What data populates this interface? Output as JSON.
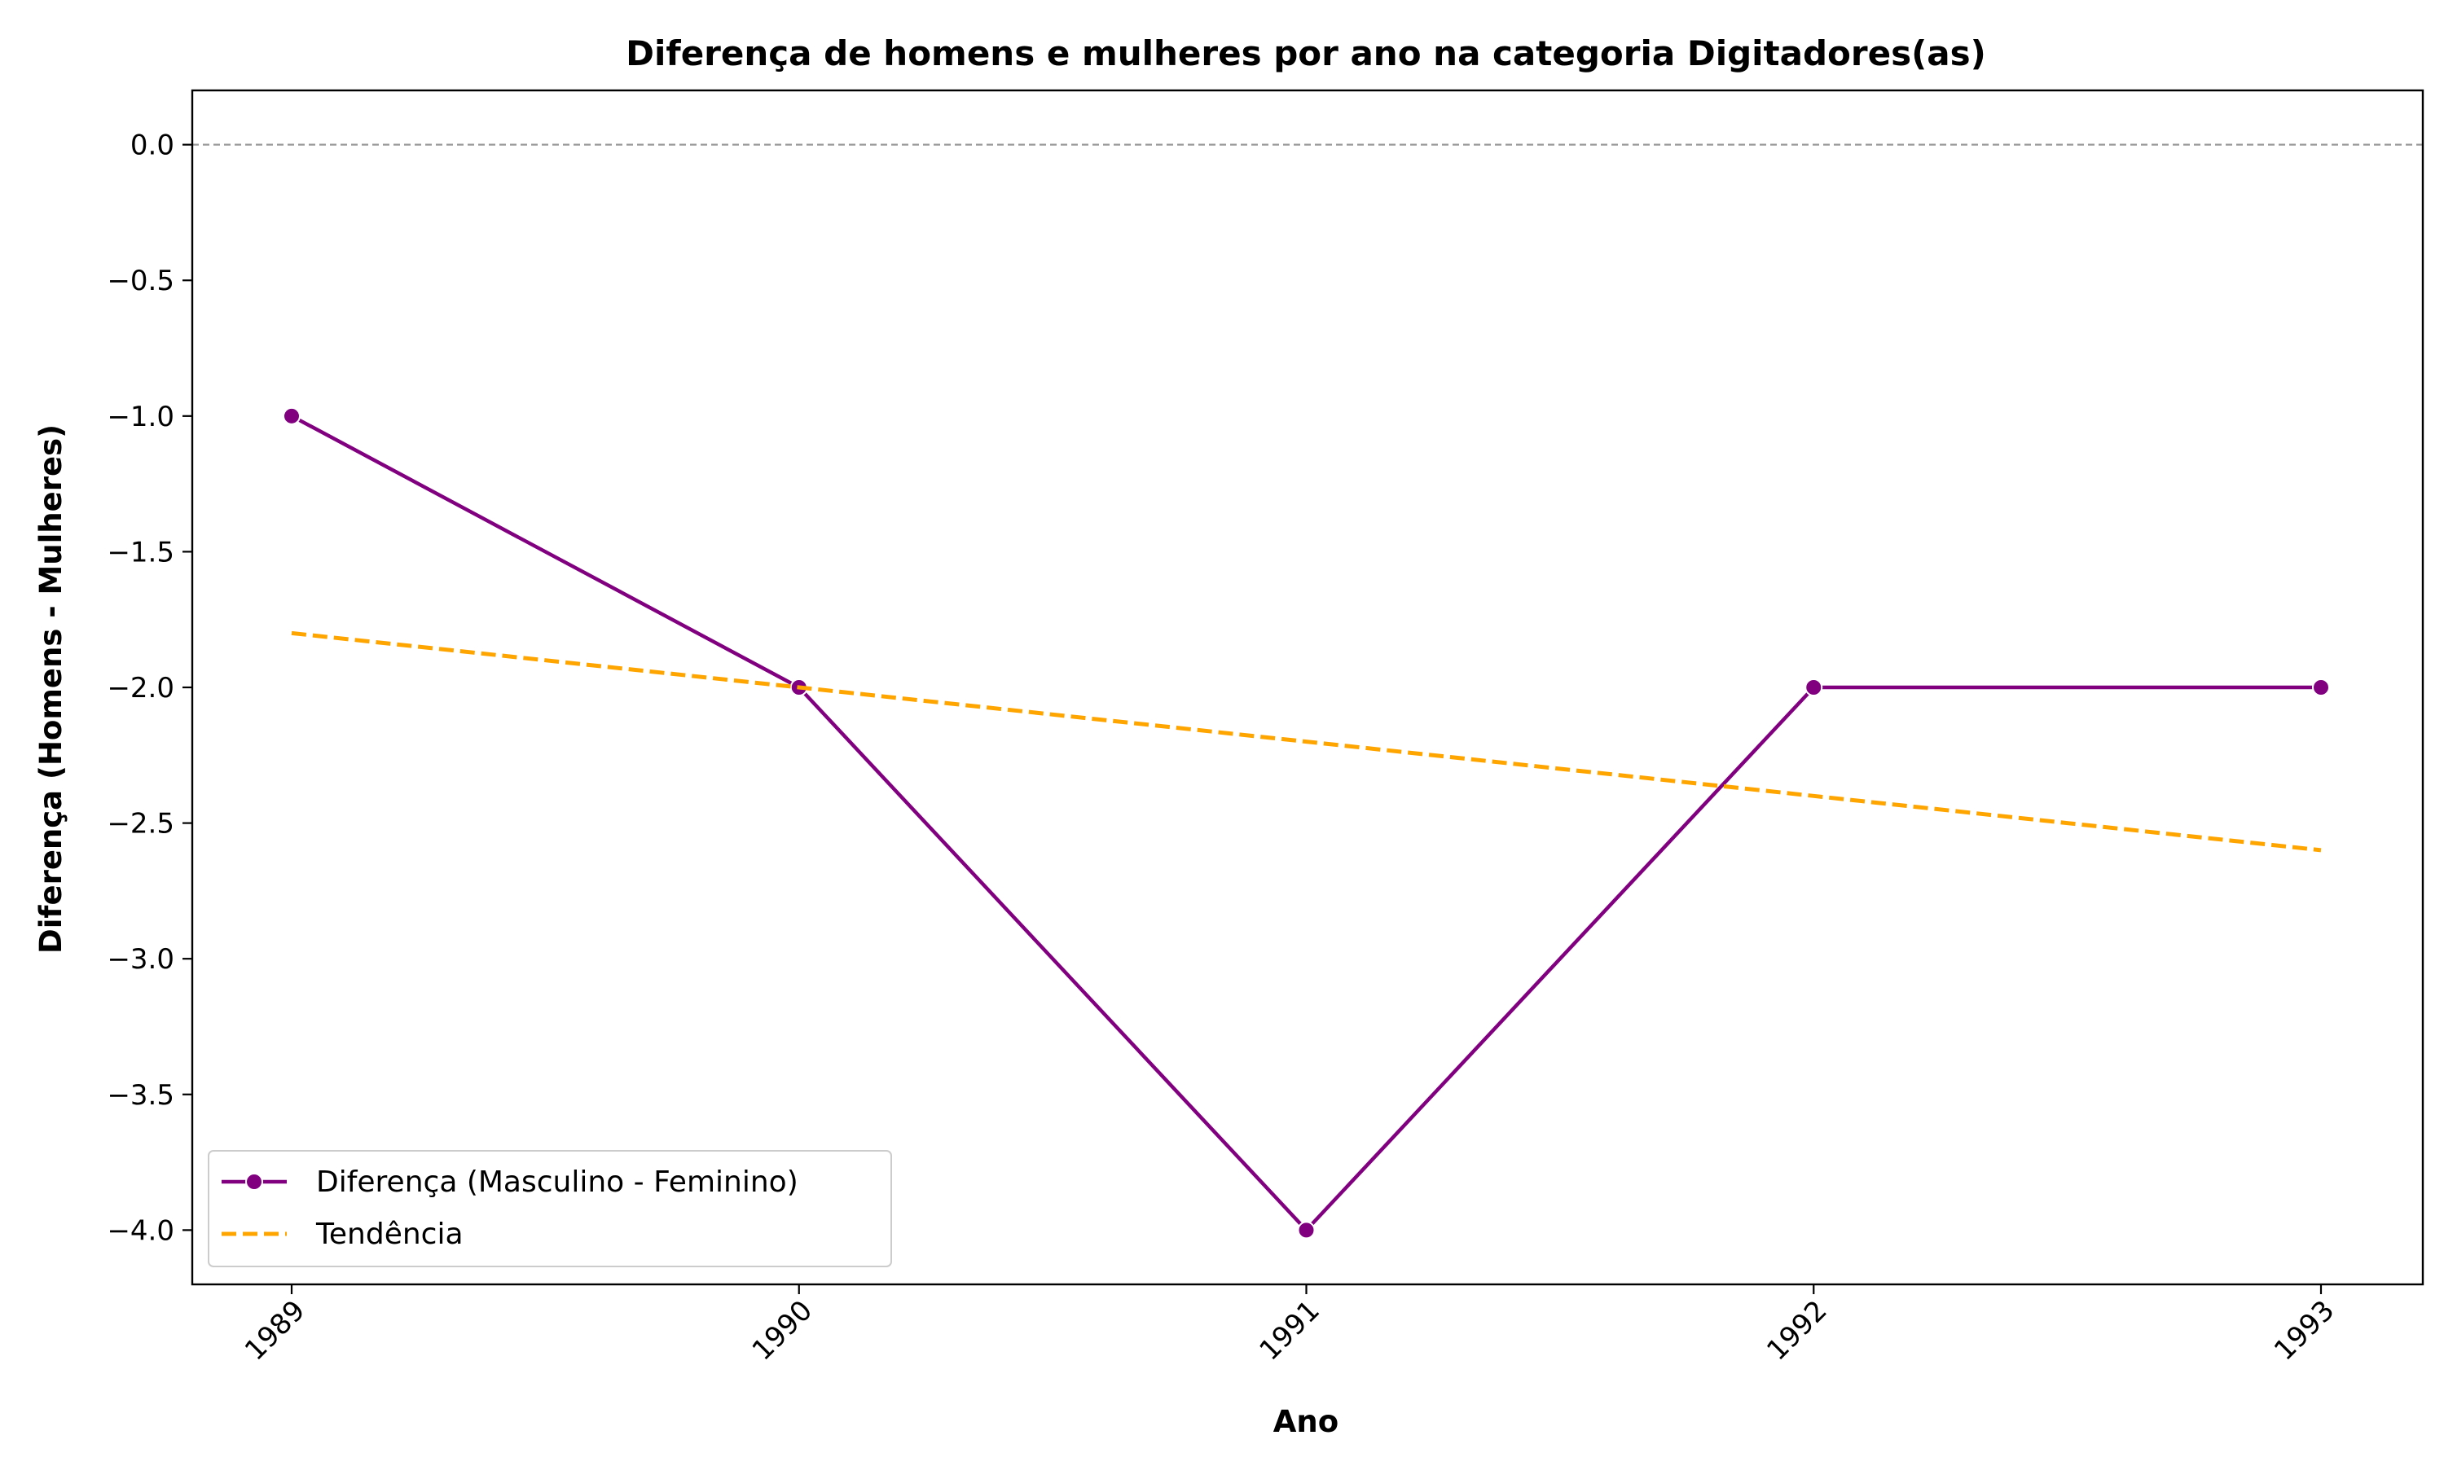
{
  "chart_data": {
    "type": "line",
    "title": "Diferença de homens e mulheres por ano na categoria Digitadores(as)",
    "xlabel": "Ano",
    "ylabel": "Diferença (Homens - Mulheres)",
    "categories": [
      "1989",
      "1990",
      "1991",
      "1992",
      "1993"
    ],
    "ylim": [
      -4.2,
      0.2
    ],
    "yticks": [
      "0.0",
      "−0.5",
      "−1.0",
      "−1.5",
      "−2.0",
      "−2.5",
      "−3.0",
      "−3.5",
      "−4.0"
    ],
    "ytick_values": [
      0.0,
      -0.5,
      -1.0,
      -1.5,
      -2.0,
      -2.5,
      -3.0,
      -3.5,
      -4.0
    ],
    "reference_line": 0.0,
    "grid": false,
    "legend_position": "lower-left",
    "series": [
      {
        "name": "Diferença (Masculino - Feminino)",
        "values": [
          -1,
          -2,
          -4,
          -2,
          -2
        ],
        "color": "#800080",
        "style": "solid",
        "marker": "circle"
      },
      {
        "name": "Tendência",
        "values": [
          -1.8,
          -2.0,
          -2.2,
          -2.4,
          -2.6
        ],
        "color": "#FFA500",
        "style": "dashed",
        "marker": "none"
      }
    ]
  }
}
